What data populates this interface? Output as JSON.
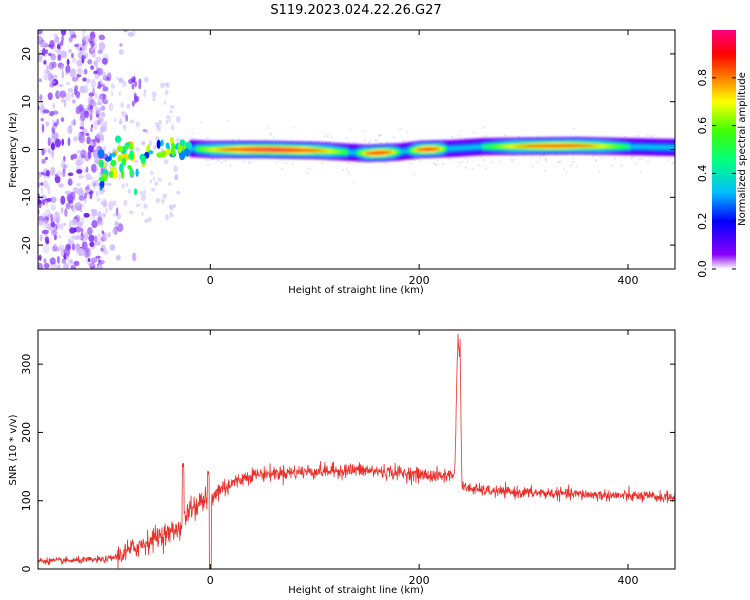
{
  "page": {
    "title": "S119.2023.024.22.26.G27"
  },
  "chart_data": [
    {
      "type": "heatmap",
      "xlabel": "Height of straight line (km)",
      "ylabel": "Frequency (Hz)",
      "xlim": [
        -165,
        445
      ],
      "ylim": [
        -25,
        25
      ],
      "xticks": [
        0,
        200,
        400
      ],
      "yticks": [
        -20,
        -10,
        0,
        10,
        20
      ],
      "colorbar": {
        "label": "Normalized spectral amplitude",
        "range": [
          0,
          1
        ],
        "ticks": [
          "0.0",
          "0.2",
          "0.4",
          "0.6",
          "0.8"
        ],
        "colormap": "rainbow"
      },
      "ridge": {
        "description_points": [
          {
            "x": -100,
            "f": -4.0
          },
          {
            "x": -90,
            "f": -3.0
          },
          {
            "x": -80,
            "f": -1.5
          },
          {
            "x": -60,
            "f": -1.0
          },
          {
            "x": -45,
            "f": 0.5
          },
          {
            "x": -30,
            "f": 0.8
          },
          {
            "x": -20,
            "f": 0.2
          },
          {
            "x": 0,
            "f": 0.0
          },
          {
            "x": 50,
            "f": 0.0
          },
          {
            "x": 100,
            "f": -0.2
          },
          {
            "x": 150,
            "f": -0.8
          },
          {
            "x": 180,
            "f": -0.5
          },
          {
            "x": 200,
            "f": 0.0
          },
          {
            "x": 230,
            "f": 0.2
          },
          {
            "x": 260,
            "f": 0.6
          },
          {
            "x": 300,
            "f": 0.7
          },
          {
            "x": 350,
            "f": 0.8
          },
          {
            "x": 400,
            "f": 0.6
          },
          {
            "x": 445,
            "f": 0.4
          }
        ],
        "peak_regions": [
          {
            "x": [
              -15,
              130
            ],
            "amp": 0.95
          },
          {
            "x": [
              140,
              180
            ],
            "amp": 0.9
          },
          {
            "x": [
              190,
              225
            ],
            "amp": 0.9
          },
          {
            "x": [
              260,
              400
            ],
            "amp": 0.85
          }
        ]
      }
    },
    {
      "type": "line",
      "xlabel": "Height of straight line (km)",
      "ylabel": "SNR (10 * v/v)",
      "xlim": [
        -165,
        445
      ],
      "ylim": [
        0,
        350
      ],
      "xticks": [
        0,
        200,
        400
      ],
      "yticks": [
        0,
        100,
        200,
        300
      ],
      "series": [
        {
          "color": "#e8312a",
          "points": [
            [
              -165,
              12
            ],
            [
              -140,
              12
            ],
            [
              -120,
              13
            ],
            [
              -100,
              14
            ],
            [
              -90,
              18
            ],
            [
              -80,
              25
            ],
            [
              -70,
              33
            ],
            [
              -60,
              40
            ],
            [
              -50,
              48
            ],
            [
              -40,
              52
            ],
            [
              -30,
              60
            ],
            [
              -25,
              70
            ],
            [
              -20,
              85
            ],
            [
              -15,
              92
            ],
            [
              -10,
              96
            ],
            [
              -5,
              100
            ],
            [
              0,
              95
            ],
            [
              5,
              110
            ],
            [
              10,
              118
            ],
            [
              20,
              125
            ],
            [
              30,
              132
            ],
            [
              40,
              138
            ],
            [
              60,
              140
            ],
            [
              80,
              142
            ],
            [
              100,
              143
            ],
            [
              120,
              144
            ],
            [
              140,
              145
            ],
            [
              160,
              143
            ],
            [
              180,
              141
            ],
            [
              200,
              138
            ],
            [
              220,
              136
            ],
            [
              234,
              138
            ],
            [
              237,
              340
            ],
            [
              239,
              340
            ],
            [
              241,
              120
            ],
            [
              260,
              115
            ],
            [
              280,
              113
            ],
            [
              300,
              112
            ],
            [
              320,
              111
            ],
            [
              340,
              110
            ],
            [
              360,
              109
            ],
            [
              380,
              108
            ],
            [
              400,
              107
            ],
            [
              420,
              106
            ],
            [
              445,
              105
            ]
          ],
          "spikes": [
            {
              "x": -26,
              "y": 155
            },
            {
              "x": -2,
              "y": 145
            },
            {
              "x": 0,
              "y": 2
            },
            {
              "x": 238,
              "y": 345
            }
          ]
        }
      ]
    }
  ]
}
